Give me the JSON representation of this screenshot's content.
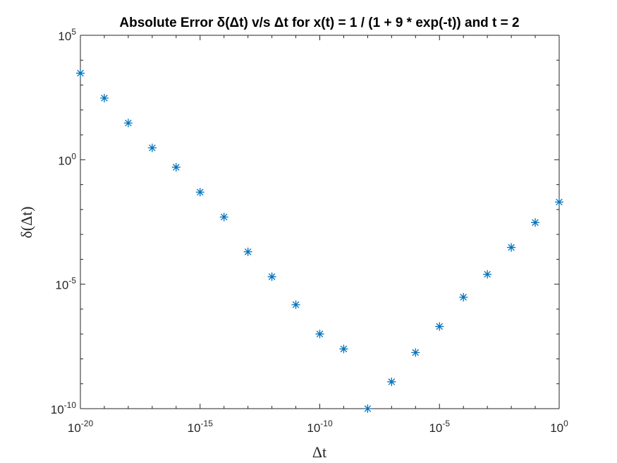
{
  "chart_data": {
    "type": "scatter",
    "title": "Absolute Error δ(Δt) v/s Δt for x(t) = 1 / (1 + 9 * exp(-t)) and t = 2",
    "xlabel": "Δt",
    "ylabel": "δ(Δt)",
    "xscale": "log",
    "yscale": "log",
    "xlim": [
      1e-20,
      1
    ],
    "ylim": [
      1e-10,
      100000
    ],
    "grid": false,
    "legend": "none",
    "marker": "asterisk",
    "color": "#0072BD",
    "x_ticks": [
      {
        "base": "10",
        "exp": "-20",
        "value": 1e-20
      },
      {
        "base": "10",
        "exp": "-15",
        "value": 1e-15
      },
      {
        "base": "10",
        "exp": "-10",
        "value": 1e-10
      },
      {
        "base": "10",
        "exp": "-5",
        "value": 1e-05
      },
      {
        "base": "10",
        "exp": "0",
        "value": 1
      }
    ],
    "y_ticks": [
      {
        "base": "10",
        "exp": "-10",
        "value": 1e-10
      },
      {
        "base": "10",
        "exp": "-5",
        "value": 1e-05
      },
      {
        "base": "10",
        "exp": "0",
        "value": 1
      },
      {
        "base": "10",
        "exp": "5",
        "value": 100000
      }
    ],
    "x": [
      1e-20,
      1e-19,
      1e-18,
      1e-17,
      1e-16,
      1e-15,
      1e-14,
      1e-13,
      1e-12,
      1e-11,
      1e-10,
      1e-09,
      1e-08,
      1e-07,
      1e-06,
      1e-05,
      0.0001,
      0.001,
      0.01,
      0.1,
      1
    ],
    "y": [
      3000,
      300,
      30,
      3,
      0.5,
      0.05,
      0.005,
      0.0002,
      2e-05,
      1.5e-06,
      1e-07,
      2.5e-08,
      1e-10,
      1.2e-09,
      1.8e-08,
      2e-07,
      3e-06,
      2.5e-05,
      0.0003,
      0.003,
      0.02
    ]
  }
}
